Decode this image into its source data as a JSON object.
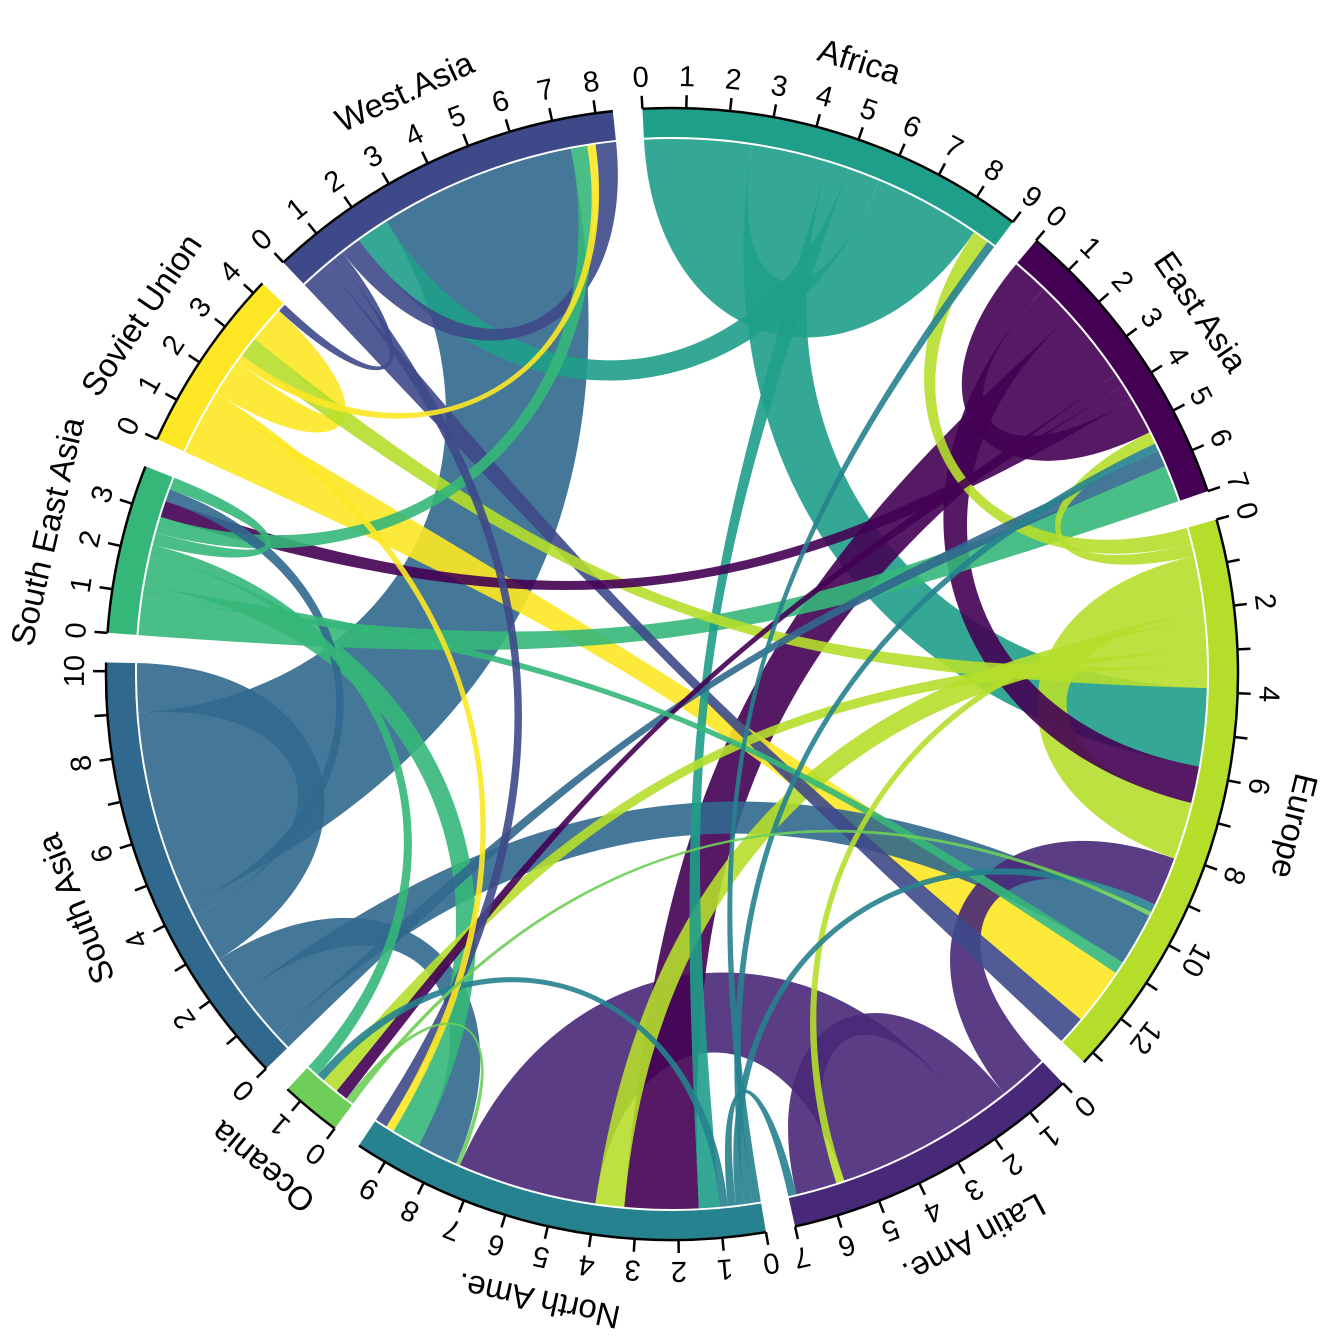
{
  "chart_data": {
    "type": "chord",
    "description": "Circular chord diagram of migration flows between world regions; sector axes show magnitude units, ribbons colored by origin region.",
    "regions": [
      {
        "name": "Africa",
        "color": "#1f9e89",
        "tick_label_step": 1
      },
      {
        "name": "East Asia",
        "color": "#440154",
        "tick_label_step": 1
      },
      {
        "name": "Europe",
        "color": "#b5de2b",
        "tick_label_step": 2
      },
      {
        "name": "Latin Ame.",
        "color": "#482878",
        "tick_label_step": 1
      },
      {
        "name": "North Ame.",
        "color": "#26828e",
        "tick_label_step": 1
      },
      {
        "name": "Oceania",
        "color": "#6ece58",
        "tick_label_step": 1
      },
      {
        "name": "South Asia",
        "color": "#31688e",
        "tick_label_step": 2
      },
      {
        "name": "South East Asia",
        "color": "#35b779",
        "tick_label_step": 1
      },
      {
        "name": "Soviet Union",
        "color": "#fde725",
        "tick_label_step": 1
      },
      {
        "name": "West.Asia",
        "color": "#3e4989",
        "tick_label_step": 1
      }
    ],
    "axis_max_labels": {
      "Africa": 9,
      "East Asia": 7,
      "Europe": 12,
      "Latin Ame.": 7,
      "North Ame.": 9,
      "Oceania": 1,
      "South Asia": 10,
      "South East Asia": 3,
      "Soviet Union": 4,
      "West.Asia": 8
    },
    "flows": [
      {
        "from": "Africa",
        "to": "Africa",
        "value": 2.6
      },
      {
        "from": "Africa",
        "to": "Europe",
        "value": 1.9
      },
      {
        "from": "Africa",
        "to": "North Ame.",
        "value": 0.5
      },
      {
        "from": "Africa",
        "to": "West.Asia",
        "value": 0.8
      },
      {
        "from": "East Asia",
        "to": "East Asia",
        "value": 0.9
      },
      {
        "from": "East Asia",
        "to": "Europe",
        "value": 0.9
      },
      {
        "from": "East Asia",
        "to": "North Ame.",
        "value": 1.8
      },
      {
        "from": "East Asia",
        "to": "Oceania",
        "value": 0.3
      },
      {
        "from": "East Asia",
        "to": "South East Asia",
        "value": 0.4
      },
      {
        "from": "Europe",
        "to": "Africa",
        "value": 0.4
      },
      {
        "from": "Europe",
        "to": "East Asia",
        "value": 0.3
      },
      {
        "from": "Europe",
        "to": "Europe",
        "value": 1.4
      },
      {
        "from": "Europe",
        "to": "Latin Ame.",
        "value": 0.2
      },
      {
        "from": "Europe",
        "to": "North Ame.",
        "value": 0.7
      },
      {
        "from": "Europe",
        "to": "Oceania",
        "value": 0.4
      },
      {
        "from": "Europe",
        "to": "Soviet Union",
        "value": 0.5
      },
      {
        "from": "Latin Ame.",
        "to": "Europe",
        "value": 1.2
      },
      {
        "from": "Latin Ame.",
        "to": "Latin Ame.",
        "value": 1.0
      },
      {
        "from": "Latin Ame.",
        "to": "North Ame.",
        "value": 3.4
      },
      {
        "from": "North Ame.",
        "to": "Africa",
        "value": 0.2
      },
      {
        "from": "North Ame.",
        "to": "East Asia",
        "value": 0.2
      },
      {
        "from": "North Ame.",
        "to": "Europe",
        "value": 0.2
      },
      {
        "from": "North Ame.",
        "to": "Latin Ame.",
        "value": 0.2
      },
      {
        "from": "North Ame.",
        "to": "Oceania",
        "value": 0.2
      },
      {
        "from": "Oceania",
        "to": "Europe",
        "value": 0.1
      },
      {
        "from": "Oceania",
        "to": "North Ame.",
        "value": 0.1
      },
      {
        "from": "South Asia",
        "to": "East Asia",
        "value": 0.4
      },
      {
        "from": "South Asia",
        "to": "Europe",
        "value": 1.3
      },
      {
        "from": "South Asia",
        "to": "North Ame.",
        "value": 1.0
      },
      {
        "from": "South Asia",
        "to": "South Asia",
        "value": 1.2
      },
      {
        "from": "South Asia",
        "to": "South East Asia",
        "value": 0.3
      },
      {
        "from": "South Asia",
        "to": "West.Asia",
        "value": 4.8
      },
      {
        "from": "South East Asia",
        "to": "East Asia",
        "value": 0.9
      },
      {
        "from": "South East Asia",
        "to": "Europe",
        "value": 0.3
      },
      {
        "from": "South East Asia",
        "to": "North Ame.",
        "value": 0.7
      },
      {
        "from": "South East Asia",
        "to": "Oceania",
        "value": 0.3
      },
      {
        "from": "South East Asia",
        "to": "South East Asia",
        "value": 0.3
      },
      {
        "from": "South East Asia",
        "to": "West.Asia",
        "value": 0.4
      },
      {
        "from": "Soviet Union",
        "to": "Europe",
        "value": 1.4
      },
      {
        "from": "Soviet Union",
        "to": "North Ame.",
        "value": 0.2
      },
      {
        "from": "Soviet Union",
        "to": "Soviet Union",
        "value": 0.9
      },
      {
        "from": "Soviet Union",
        "to": "West.Asia",
        "value": 0.2
      },
      {
        "from": "West.Asia",
        "to": "Europe",
        "value": 0.7
      },
      {
        "from": "West.Asia",
        "to": "North Ame.",
        "value": 0.3
      },
      {
        "from": "West.Asia",
        "to": "Soviet Union",
        "value": 0.2
      },
      {
        "from": "West.Asia",
        "to": "West.Asia",
        "value": 0.5
      }
    ],
    "layout": {
      "center": [
        672,
        674
      ],
      "start_angle_deg": 93,
      "gap_deg": 3,
      "ring_outer_r": 565,
      "ring_inner_r": 537,
      "ribbon_r": 535,
      "tick_len": 13,
      "tick_label_r": 597,
      "name_label_r": 641,
      "tick_font_size": 29,
      "name_font_size": 33,
      "ribbon_opacity": 0.9,
      "grid": false,
      "legend": false
    }
  }
}
